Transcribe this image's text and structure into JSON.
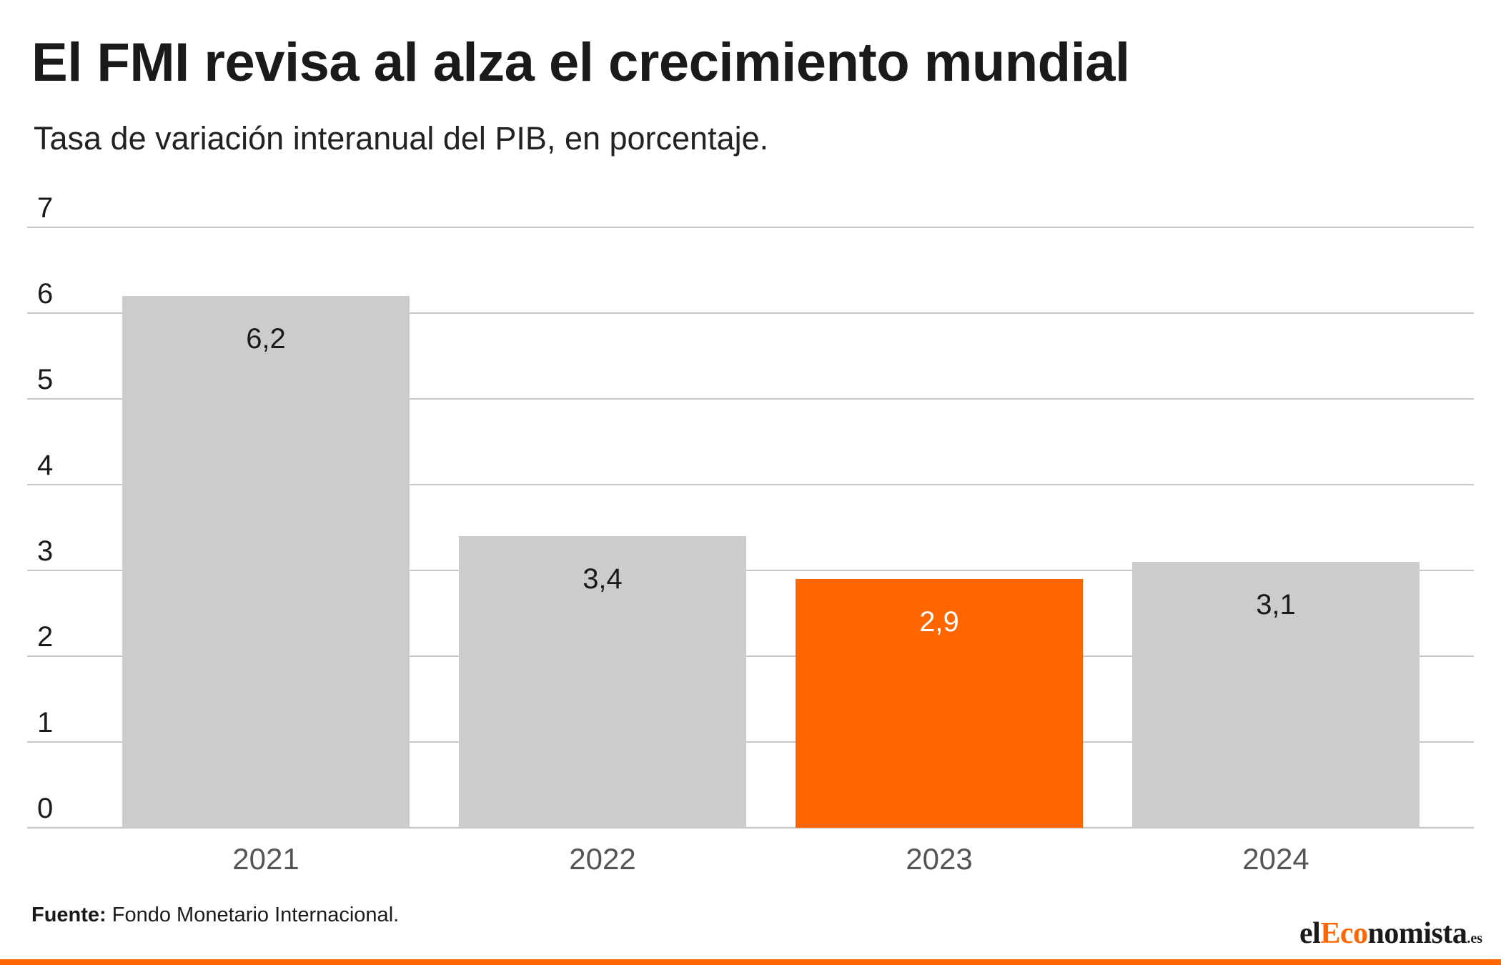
{
  "header": {
    "title": "El FMI revisa al alza el crecimiento mundial",
    "subtitle": "Tasa de variación interanual del PIB, en porcentaje."
  },
  "chart_data": {
    "type": "bar",
    "title": "El FMI revisa al alza el crecimiento mundial",
    "subtitle": "Tasa de variación interanual del PIB, en porcentaje.",
    "xlabel": "",
    "ylabel": "",
    "categories": [
      "2021",
      "2022",
      "2023",
      "2024"
    ],
    "values": [
      6.2,
      3.4,
      2.9,
      3.1
    ],
    "value_labels": [
      "6,2",
      "3,4",
      "2,9",
      "3,1"
    ],
    "highlight_index": 2,
    "ylim": [
      0,
      7
    ],
    "yticks": [
      0,
      1,
      2,
      3,
      4,
      5,
      6,
      7
    ],
    "grid": true,
    "legend": "none",
    "colors": {
      "bar": "#cccccc",
      "highlight": "#ff6600",
      "grid": "#c8c8c8",
      "label_dark": "#1a1a1a",
      "label_light": "#ffffff",
      "axis_text": "#555555"
    }
  },
  "footer": {
    "source_label": "Fuente:",
    "source_text": " Fondo Monetario Internacional.",
    "logo_part1": "el",
    "logo_part2": "Eco",
    "logo_part3": "nomista",
    "logo_tld": ".es"
  }
}
